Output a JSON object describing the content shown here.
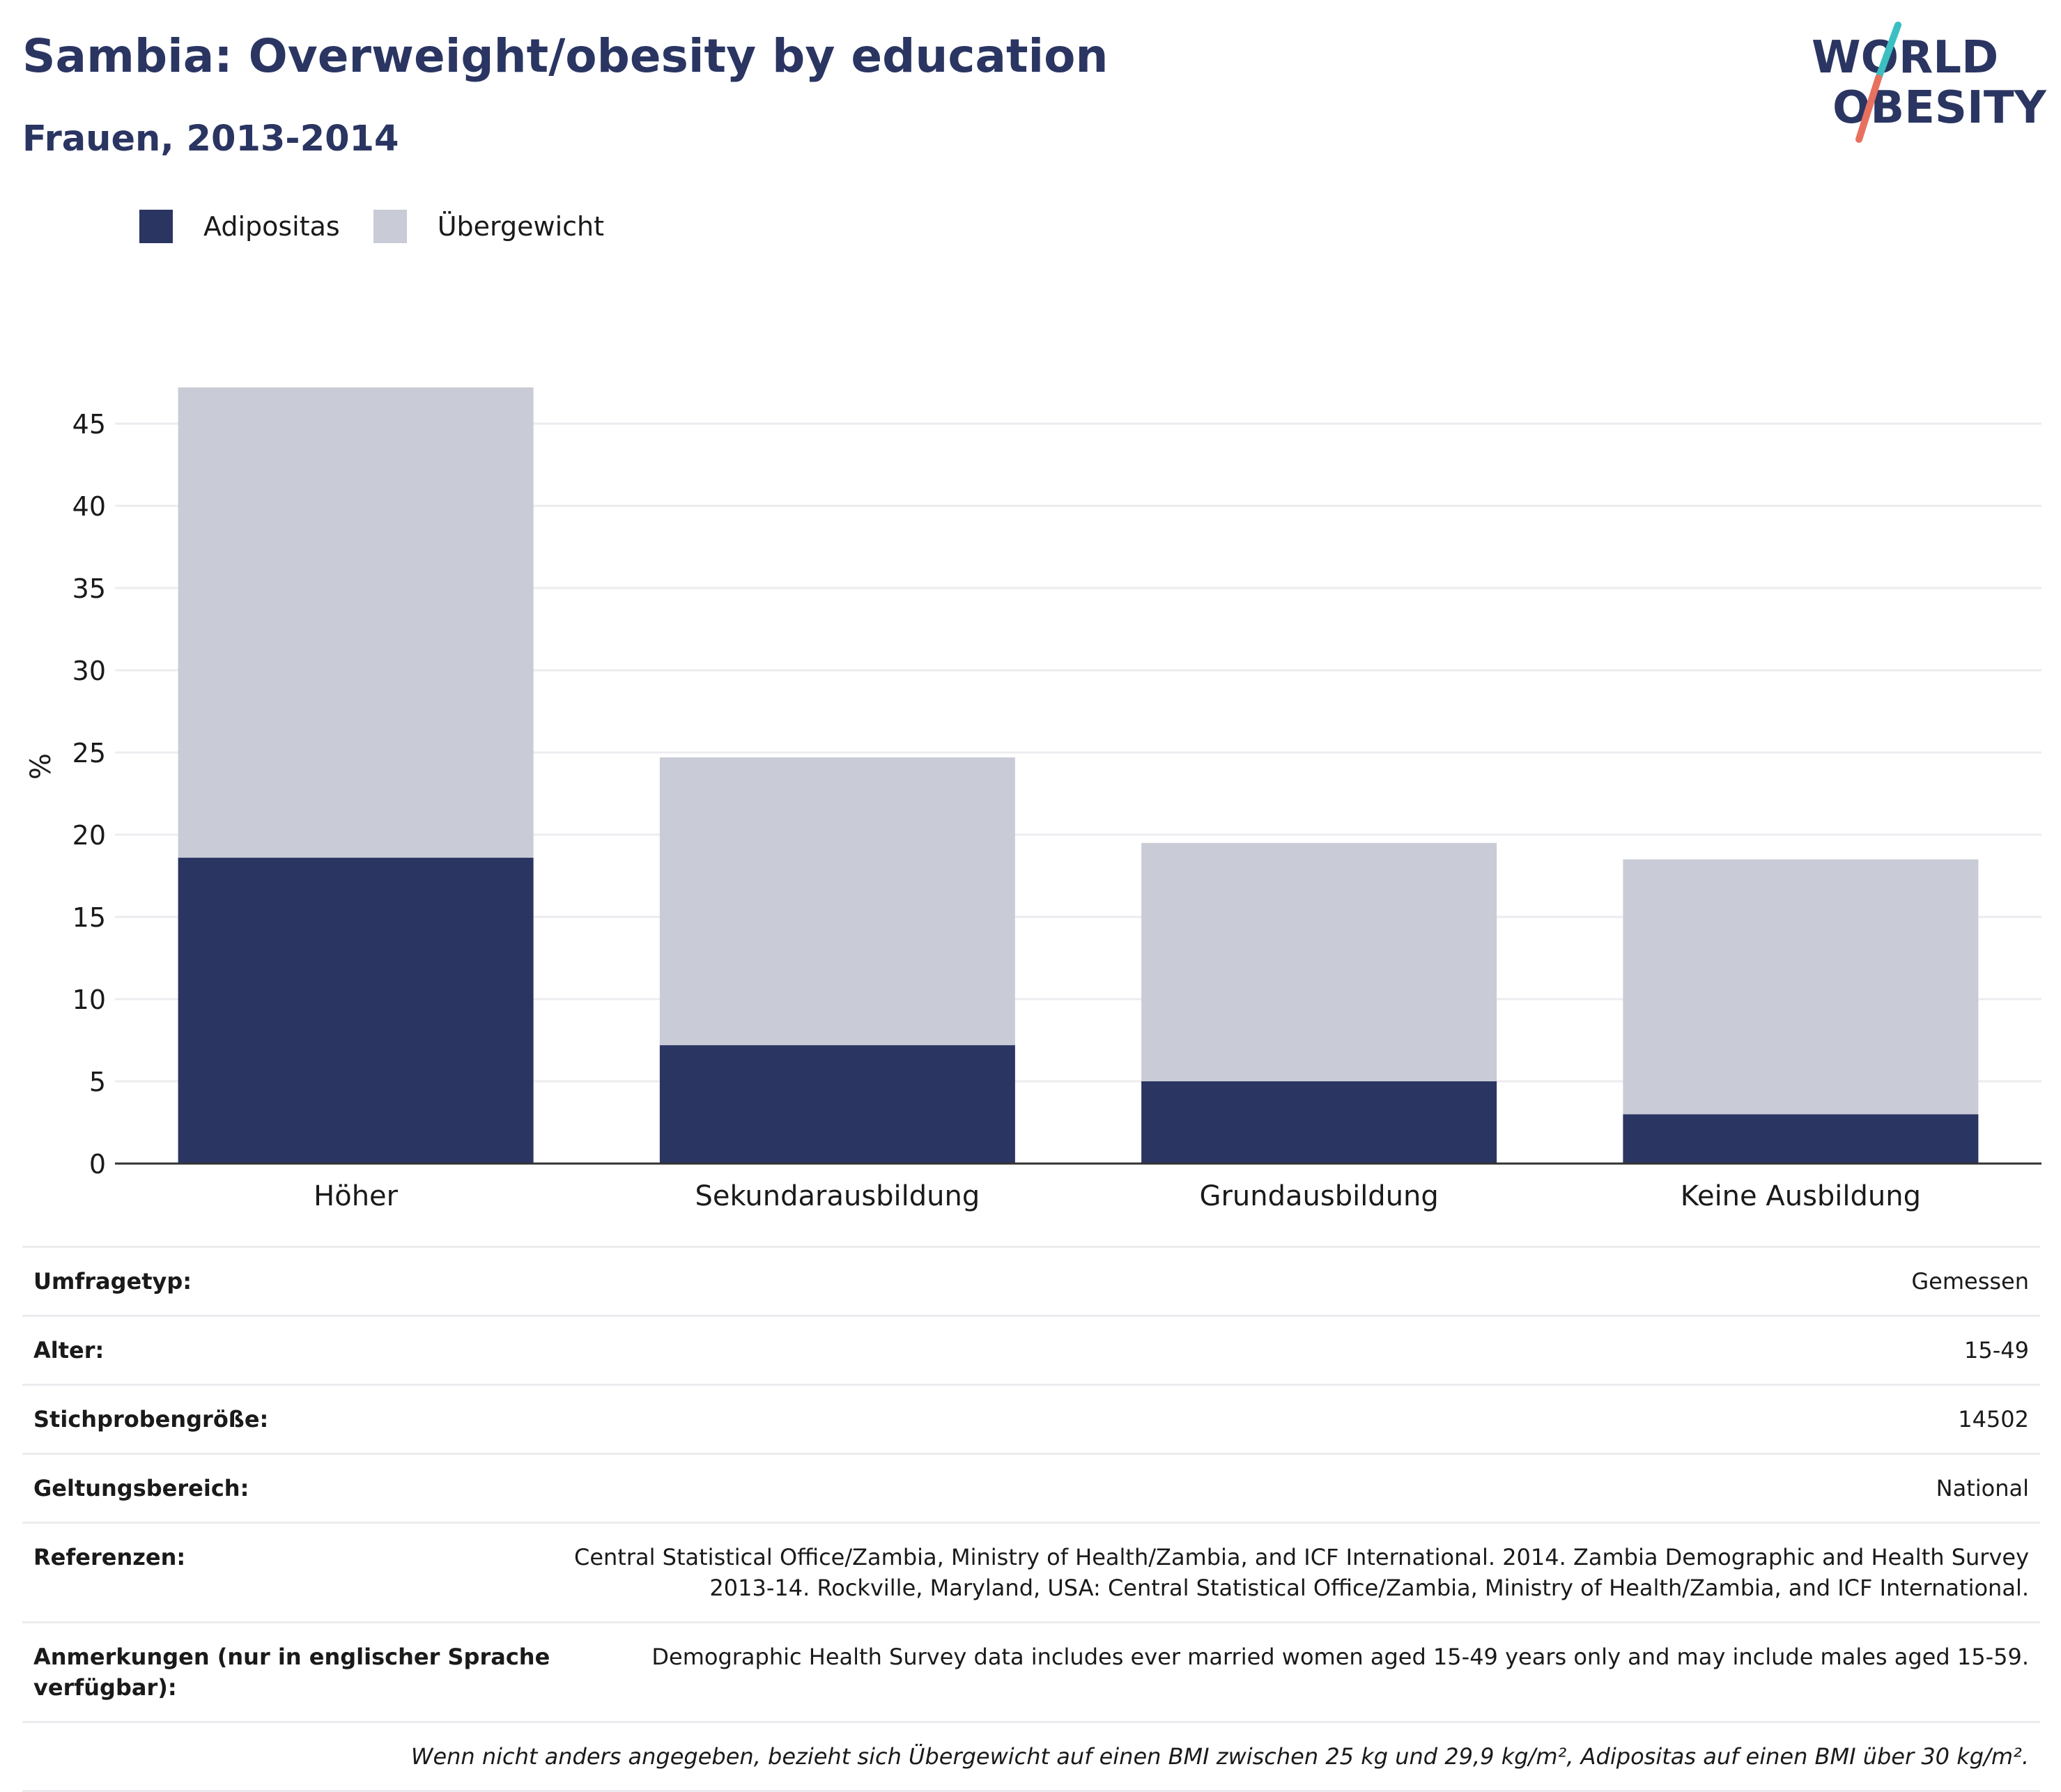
{
  "header": {
    "title": "Sambia: Overweight/obesity by education",
    "subtitle": "Frauen, 2013-2014"
  },
  "logo": {
    "line1": "WORLD",
    "line2": "OBESITY"
  },
  "colors": {
    "title": "#2a3562",
    "adipositas": "#2a3562",
    "uebergewicht": "#c9cbd6",
    "grid": "#ececf0",
    "axis": "#333333",
    "logo_teal": "#3bbfc1",
    "logo_coral": "#e8705f"
  },
  "chart_data": {
    "type": "bar",
    "stacked": true,
    "categories": [
      "Höher",
      "Sekundarausbildung",
      "Grundausbildung",
      "Keine Ausbildung"
    ],
    "series": [
      {
        "name": "Adipositas",
        "values": [
          18.6,
          7.2,
          5.0,
          3.0
        ]
      },
      {
        "name": "Übergewicht",
        "values": [
          28.6,
          17.5,
          14.5,
          15.5
        ]
      }
    ],
    "ylabel": "%",
    "ylim": [
      0,
      47.2
    ],
    "yticks": [
      0,
      5,
      10,
      15,
      20,
      25,
      30,
      35,
      40,
      45
    ],
    "grid": true,
    "legend_position": "top-left"
  },
  "info": {
    "rows": [
      {
        "key": "Umfragetyp:",
        "value": "Gemessen"
      },
      {
        "key": "Alter:",
        "value": "15-49"
      },
      {
        "key": "Stichprobengröße:",
        "value": "14502"
      },
      {
        "key": "Geltungsbereich:",
        "value": "National"
      },
      {
        "key": "Referenzen:",
        "value": "Central Statistical Office/Zambia, Ministry of Health/Zambia, and ICF International. 2014. Zambia Demographic and Health Survey 2013-14. Rockville, Maryland, USA: Central Statistical Office/Zambia, Ministry of Health/Zambia, and ICF International."
      },
      {
        "key": "Anmerkungen (nur in englischer Sprache verfügbar):",
        "value": "Demographic Health Survey data includes ever married women aged 15-49 years only and may include males aged 15-59."
      }
    ],
    "note": "Wenn nicht anders angegeben, bezieht sich Übergewicht auf einen BMI zwischen 25 kg und 29,9 kg/m², Adipositas auf einen BMI über 30 kg/m²."
  }
}
